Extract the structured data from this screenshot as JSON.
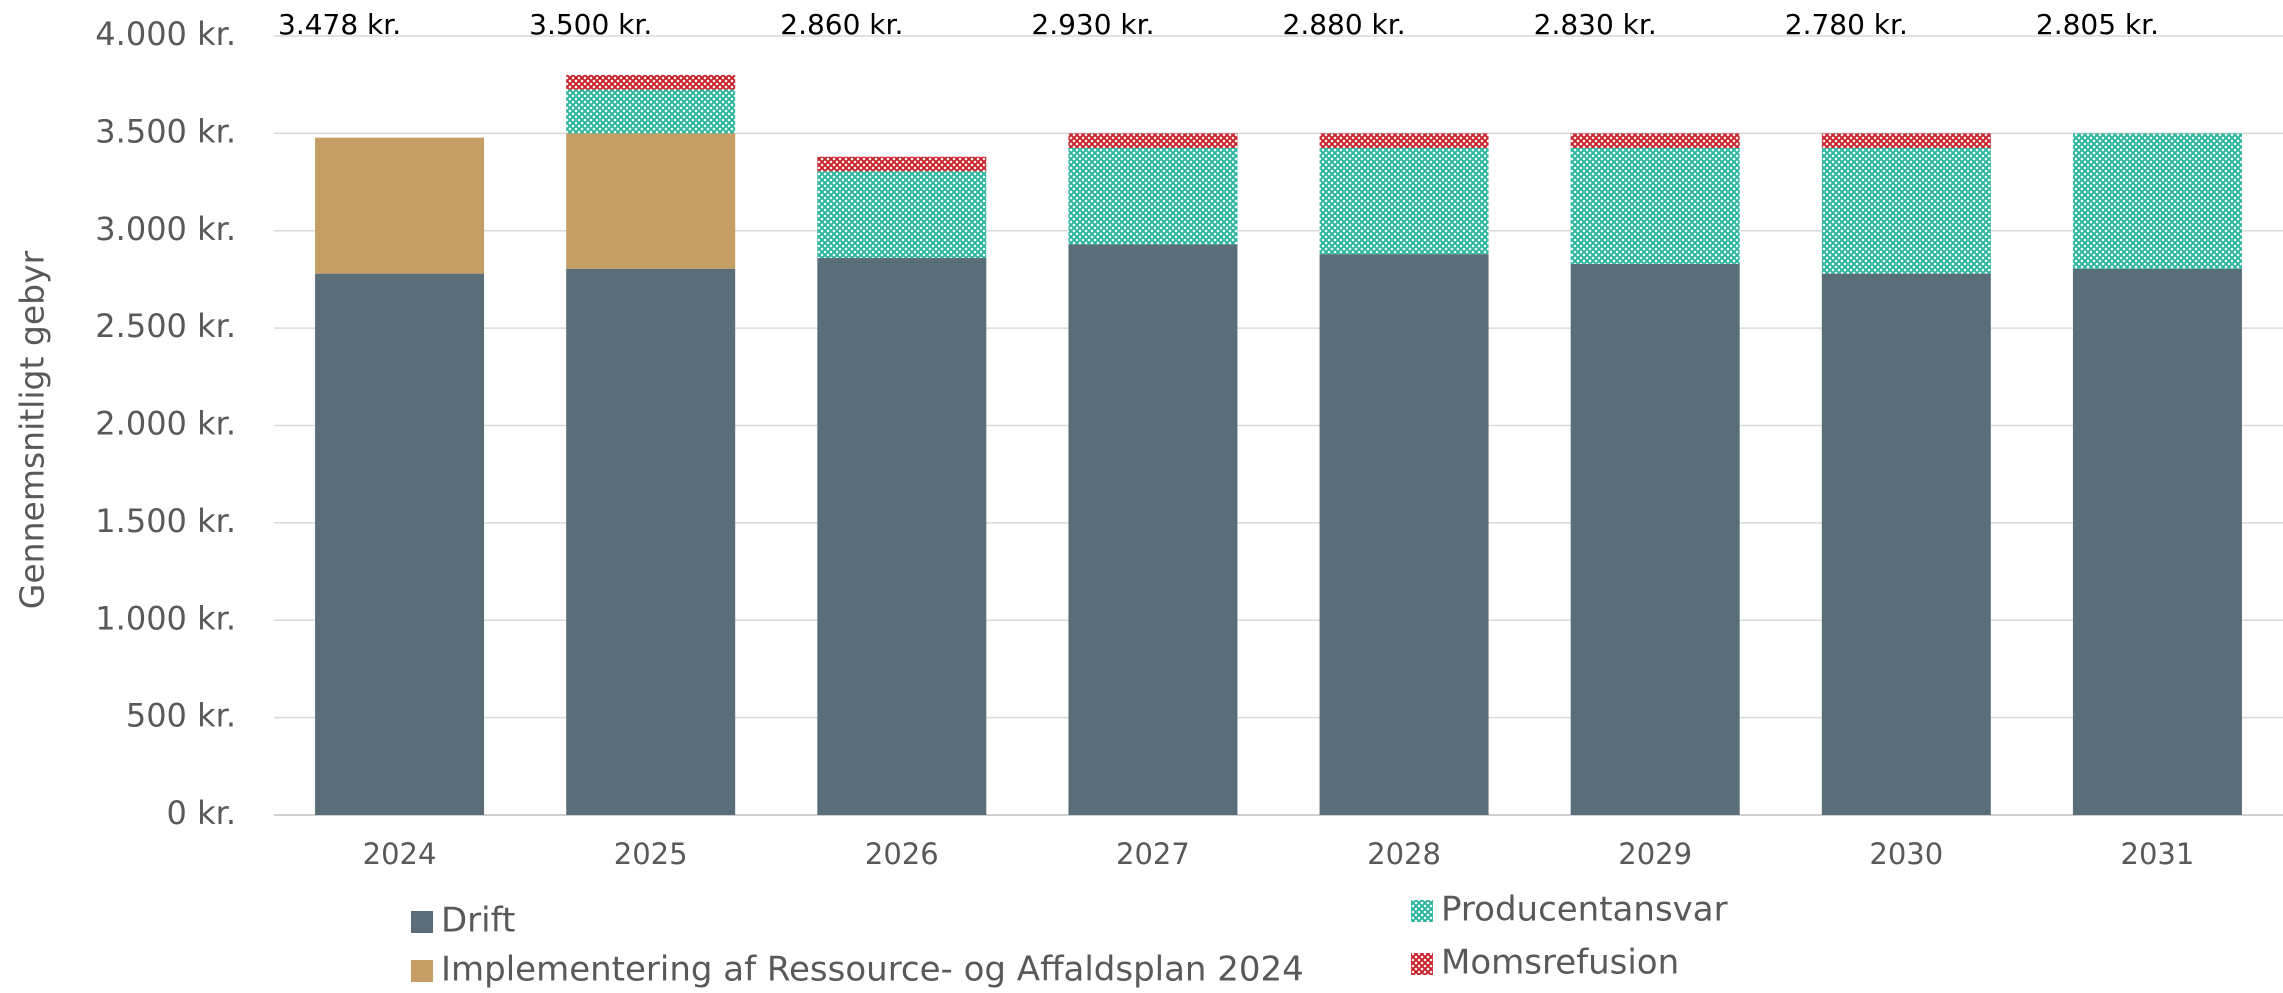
{
  "chart_data": {
    "type": "stacked_bar",
    "y_label": "Gennemsnitligt gebyr",
    "categories": [
      "2024",
      "2025",
      "2026",
      "2027",
      "2028",
      "2029",
      "2030",
      "2031"
    ],
    "series": [
      {
        "name": "Drift",
        "color": "#5a6e79",
        "pattern": false,
        "values": [
          2780,
          2805,
          2860,
          2930,
          2880,
          2830,
          2780,
          2805
        ]
      },
      {
        "name": "Implementering af Ressource- og Affaldsplan 2024",
        "color": "#c49e65",
        "pattern": false,
        "values": [
          698,
          695,
          0,
          0,
          0,
          0,
          0,
          0
        ]
      },
      {
        "name": "Producentansvar",
        "color": "#2bb59c",
        "pattern": true,
        "values": [
          0,
          225,
          445,
          495,
          545,
          595,
          645,
          695
        ]
      },
      {
        "name": "Momsrefusion",
        "color": "#c8232c",
        "pattern": true,
        "values": [
          0,
          75,
          75,
          75,
          75,
          75,
          75,
          0
        ]
      }
    ],
    "top_labels": {
      "values": [
        3478,
        3500,
        2860,
        2930,
        2880,
        2830,
        2780,
        2805
      ],
      "value_labels": [
        "3.478 kr.",
        "3.500 kr.",
        "2.860 kr.",
        "2.930 kr.",
        "2.880 kr.",
        "2.830 kr.",
        "2.780 kr.",
        "2.805 kr."
      ]
    },
    "ylim": [
      0,
      4000
    ],
    "yticks": [
      {
        "value": 0,
        "label": "0 kr."
      },
      {
        "value": 500,
        "label": "500 kr."
      },
      {
        "value": 1000,
        "label": "1.000 kr."
      },
      {
        "value": 1500,
        "label": "1.500 kr."
      },
      {
        "value": 2000,
        "label": "2.000 kr."
      },
      {
        "value": 2500,
        "label": "2.500 kr."
      },
      {
        "value": 3000,
        "label": "3.000 kr."
      },
      {
        "value": 3500,
        "label": "3.500 kr."
      },
      {
        "value": 4000,
        "label": "4.000 kr."
      }
    ],
    "grid": true
  }
}
